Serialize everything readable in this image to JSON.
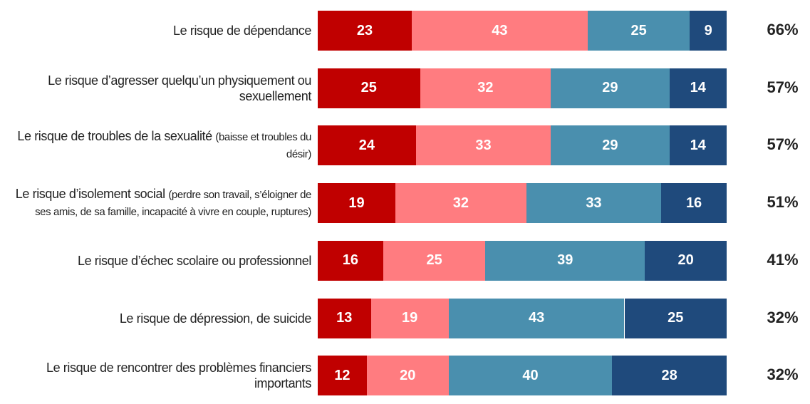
{
  "chart_data": {
    "type": "stacked-bar-horizontal",
    "categories": [
      "Le risque de dépendance",
      "Le risque d’agresser quelqu’un physiquement ou sexuellement",
      "Le risque de troubles de la sexualité",
      "Le risque d’isolement social",
      "Le risque d’échec scolaire ou professionnel",
      "Le risque de dépression, de suicide",
      "Le risque de rencontrer des problèmes financiers importants"
    ],
    "category_notes": [
      null,
      null,
      "(baisse et troubles du désir)",
      "(perdre son travail, s’éloigner de ses amis, de sa famille, incapacité à vivre en couple, ruptures)",
      null,
      null,
      null
    ],
    "series": [
      {
        "color": "#c00000",
        "values": [
          23,
          25,
          24,
          19,
          16,
          13,
          12
        ]
      },
      {
        "color": "#ff7c80",
        "values": [
          43,
          32,
          33,
          32,
          25,
          19,
          20
        ]
      },
      {
        "color": "#4a8fae",
        "values": [
          25,
          29,
          29,
          33,
          39,
          43,
          40
        ]
      },
      {
        "color": "#1f4a7c",
        "values": [
          9,
          14,
          14,
          16,
          20,
          25,
          28
        ]
      }
    ],
    "totals": {
      "values": [
        66,
        57,
        57,
        51,
        41,
        32,
        32
      ],
      "value_labels": [
        "66%",
        "57%",
        "57%",
        "51%",
        "41%",
        "32%",
        "32%"
      ]
    },
    "xlim": [
      0,
      100
    ]
  }
}
